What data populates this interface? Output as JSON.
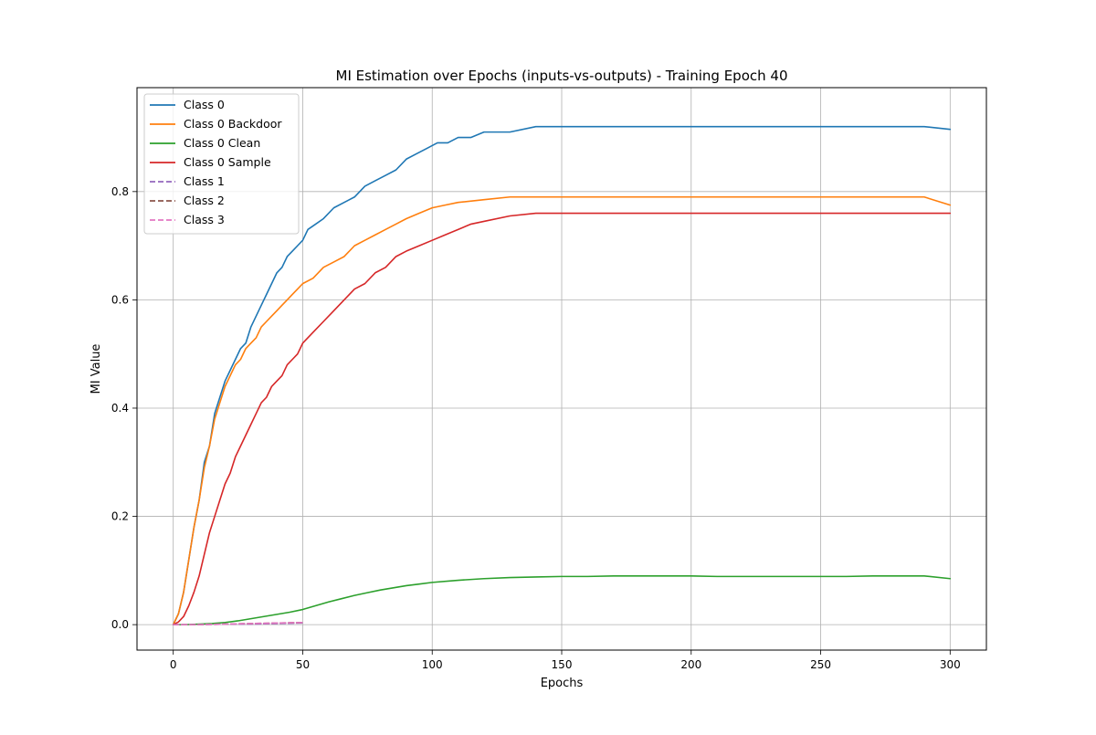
{
  "chart_data": {
    "type": "line",
    "title": "MI Estimation over Epochs (inputs-vs-outputs) - Training Epoch 40",
    "xlabel": "Epochs",
    "ylabel": "MI Value",
    "xlim": [
      -14,
      314
    ],
    "ylim": [
      -0.047,
      0.992
    ],
    "xticks": [
      0,
      50,
      100,
      150,
      200,
      250,
      300
    ],
    "yticks": [
      0.0,
      0.2,
      0.4,
      0.6,
      0.8
    ],
    "grid": true,
    "legend_position": "upper-left",
    "series": [
      {
        "name": "Class 0",
        "color": "#1f77b4",
        "style": "solid",
        "points": [
          [
            0,
            0.0
          ],
          [
            2,
            0.02
          ],
          [
            4,
            0.06
          ],
          [
            6,
            0.12
          ],
          [
            8,
            0.18
          ],
          [
            10,
            0.23
          ],
          [
            12,
            0.3
          ],
          [
            14,
            0.33
          ],
          [
            16,
            0.39
          ],
          [
            18,
            0.42
          ],
          [
            20,
            0.45
          ],
          [
            22,
            0.47
          ],
          [
            24,
            0.49
          ],
          [
            26,
            0.51
          ],
          [
            28,
            0.52
          ],
          [
            30,
            0.55
          ],
          [
            32,
            0.57
          ],
          [
            34,
            0.59
          ],
          [
            36,
            0.61
          ],
          [
            38,
            0.63
          ],
          [
            40,
            0.65
          ],
          [
            42,
            0.66
          ],
          [
            44,
            0.68
          ],
          [
            46,
            0.69
          ],
          [
            48,
            0.7
          ],
          [
            50,
            0.71
          ],
          [
            52,
            0.73
          ],
          [
            55,
            0.74
          ],
          [
            58,
            0.75
          ],
          [
            62,
            0.77
          ],
          [
            66,
            0.78
          ],
          [
            70,
            0.79
          ],
          [
            74,
            0.81
          ],
          [
            78,
            0.82
          ],
          [
            82,
            0.83
          ],
          [
            86,
            0.84
          ],
          [
            90,
            0.86
          ],
          [
            94,
            0.87
          ],
          [
            98,
            0.88
          ],
          [
            102,
            0.89
          ],
          [
            106,
            0.89
          ],
          [
            110,
            0.9
          ],
          [
            115,
            0.9
          ],
          [
            120,
            0.91
          ],
          [
            130,
            0.91
          ],
          [
            140,
            0.92
          ],
          [
            150,
            0.92
          ],
          [
            160,
            0.92
          ],
          [
            170,
            0.92
          ],
          [
            180,
            0.92
          ],
          [
            190,
            0.92
          ],
          [
            200,
            0.92
          ],
          [
            210,
            0.92
          ],
          [
            220,
            0.92
          ],
          [
            230,
            0.92
          ],
          [
            240,
            0.92
          ],
          [
            250,
            0.92
          ],
          [
            260,
            0.92
          ],
          [
            270,
            0.92
          ],
          [
            280,
            0.92
          ],
          [
            290,
            0.92
          ],
          [
            300,
            0.915
          ]
        ]
      },
      {
        "name": "Class 0 Backdoor",
        "color": "#ff7f0e",
        "style": "solid",
        "points": [
          [
            0,
            0.0
          ],
          [
            2,
            0.02
          ],
          [
            4,
            0.06
          ],
          [
            6,
            0.12
          ],
          [
            8,
            0.18
          ],
          [
            10,
            0.23
          ],
          [
            12,
            0.29
          ],
          [
            14,
            0.33
          ],
          [
            16,
            0.38
          ],
          [
            18,
            0.41
          ],
          [
            20,
            0.44
          ],
          [
            22,
            0.46
          ],
          [
            24,
            0.48
          ],
          [
            26,
            0.49
          ],
          [
            28,
            0.51
          ],
          [
            30,
            0.52
          ],
          [
            32,
            0.53
          ],
          [
            34,
            0.55
          ],
          [
            36,
            0.56
          ],
          [
            38,
            0.57
          ],
          [
            40,
            0.58
          ],
          [
            42,
            0.59
          ],
          [
            44,
            0.6
          ],
          [
            46,
            0.61
          ],
          [
            48,
            0.62
          ],
          [
            50,
            0.63
          ],
          [
            54,
            0.64
          ],
          [
            58,
            0.66
          ],
          [
            62,
            0.67
          ],
          [
            66,
            0.68
          ],
          [
            70,
            0.7
          ],
          [
            74,
            0.71
          ],
          [
            78,
            0.72
          ],
          [
            82,
            0.73
          ],
          [
            86,
            0.74
          ],
          [
            90,
            0.75
          ],
          [
            95,
            0.76
          ],
          [
            100,
            0.77
          ],
          [
            105,
            0.775
          ],
          [
            110,
            0.78
          ],
          [
            120,
            0.785
          ],
          [
            130,
            0.79
          ],
          [
            140,
            0.79
          ],
          [
            150,
            0.79
          ],
          [
            160,
            0.79
          ],
          [
            170,
            0.79
          ],
          [
            180,
            0.79
          ],
          [
            190,
            0.79
          ],
          [
            200,
            0.79
          ],
          [
            210,
            0.79
          ],
          [
            220,
            0.79
          ],
          [
            230,
            0.79
          ],
          [
            240,
            0.79
          ],
          [
            250,
            0.79
          ],
          [
            260,
            0.79
          ],
          [
            270,
            0.79
          ],
          [
            280,
            0.79
          ],
          [
            290,
            0.79
          ],
          [
            300,
            0.775
          ]
        ]
      },
      {
        "name": "Class 0 Clean",
        "color": "#2ca02c",
        "style": "solid",
        "points": [
          [
            0,
            0.0
          ],
          [
            5,
            0.0
          ],
          [
            10,
            0.001
          ],
          [
            15,
            0.002
          ],
          [
            20,
            0.004
          ],
          [
            25,
            0.007
          ],
          [
            30,
            0.011
          ],
          [
            35,
            0.015
          ],
          [
            40,
            0.019
          ],
          [
            45,
            0.023
          ],
          [
            50,
            0.028
          ],
          [
            55,
            0.035
          ],
          [
            60,
            0.042
          ],
          [
            65,
            0.048
          ],
          [
            70,
            0.054
          ],
          [
            75,
            0.059
          ],
          [
            80,
            0.064
          ],
          [
            85,
            0.068
          ],
          [
            90,
            0.072
          ],
          [
            95,
            0.075
          ],
          [
            100,
            0.078
          ],
          [
            110,
            0.082
          ],
          [
            120,
            0.085
          ],
          [
            130,
            0.087
          ],
          [
            140,
            0.088
          ],
          [
            150,
            0.089
          ],
          [
            160,
            0.089
          ],
          [
            170,
            0.09
          ],
          [
            180,
            0.09
          ],
          [
            190,
            0.09
          ],
          [
            200,
            0.09
          ],
          [
            210,
            0.089
          ],
          [
            220,
            0.089
          ],
          [
            230,
            0.089
          ],
          [
            240,
            0.089
          ],
          [
            250,
            0.089
          ],
          [
            260,
            0.089
          ],
          [
            270,
            0.09
          ],
          [
            280,
            0.09
          ],
          [
            290,
            0.09
          ],
          [
            300,
            0.085
          ]
        ]
      },
      {
        "name": "Class 0 Sample",
        "color": "#d62728",
        "style": "solid",
        "points": [
          [
            0,
            0.0
          ],
          [
            2,
            0.005
          ],
          [
            4,
            0.015
          ],
          [
            6,
            0.035
          ],
          [
            8,
            0.06
          ],
          [
            10,
            0.09
          ],
          [
            12,
            0.13
          ],
          [
            14,
            0.17
          ],
          [
            16,
            0.2
          ],
          [
            18,
            0.23
          ],
          [
            20,
            0.26
          ],
          [
            22,
            0.28
          ],
          [
            24,
            0.31
          ],
          [
            26,
            0.33
          ],
          [
            28,
            0.35
          ],
          [
            30,
            0.37
          ],
          [
            32,
            0.39
          ],
          [
            34,
            0.41
          ],
          [
            36,
            0.42
          ],
          [
            38,
            0.44
          ],
          [
            40,
            0.45
          ],
          [
            42,
            0.46
          ],
          [
            44,
            0.48
          ],
          [
            46,
            0.49
          ],
          [
            48,
            0.5
          ],
          [
            50,
            0.52
          ],
          [
            54,
            0.54
          ],
          [
            58,
            0.56
          ],
          [
            62,
            0.58
          ],
          [
            66,
            0.6
          ],
          [
            70,
            0.62
          ],
          [
            74,
            0.63
          ],
          [
            78,
            0.65
          ],
          [
            82,
            0.66
          ],
          [
            86,
            0.68
          ],
          [
            90,
            0.69
          ],
          [
            95,
            0.7
          ],
          [
            100,
            0.71
          ],
          [
            105,
            0.72
          ],
          [
            110,
            0.73
          ],
          [
            115,
            0.74
          ],
          [
            120,
            0.745
          ],
          [
            130,
            0.755
          ],
          [
            140,
            0.76
          ],
          [
            150,
            0.76
          ],
          [
            160,
            0.76
          ],
          [
            170,
            0.76
          ],
          [
            180,
            0.76
          ],
          [
            190,
            0.76
          ],
          [
            200,
            0.76
          ],
          [
            210,
            0.76
          ],
          [
            220,
            0.76
          ],
          [
            230,
            0.76
          ],
          [
            240,
            0.76
          ],
          [
            250,
            0.76
          ],
          [
            260,
            0.76
          ],
          [
            270,
            0.76
          ],
          [
            280,
            0.76
          ],
          [
            290,
            0.76
          ],
          [
            300,
            0.76
          ]
        ]
      },
      {
        "name": "Class 1",
        "color": "#9467bd",
        "style": "dashed",
        "points": [
          [
            0,
            0.0
          ],
          [
            10,
            0.0
          ],
          [
            20,
            0.001
          ],
          [
            30,
            0.001
          ],
          [
            40,
            0.002
          ],
          [
            50,
            0.003
          ]
        ]
      },
      {
        "name": "Class 2",
        "color": "#8c564b",
        "style": "dashed",
        "points": [
          [
            0,
            0.0
          ],
          [
            10,
            0.0
          ],
          [
            20,
            0.001
          ],
          [
            30,
            0.002
          ],
          [
            40,
            0.003
          ],
          [
            50,
            0.004
          ]
        ]
      },
      {
        "name": "Class 3",
        "color": "#e377c2",
        "style": "dashed",
        "points": [
          [
            0,
            0.0
          ],
          [
            10,
            0.0
          ],
          [
            20,
            0.001
          ],
          [
            30,
            0.002
          ],
          [
            40,
            0.003
          ],
          [
            50,
            0.004
          ]
        ]
      }
    ]
  }
}
